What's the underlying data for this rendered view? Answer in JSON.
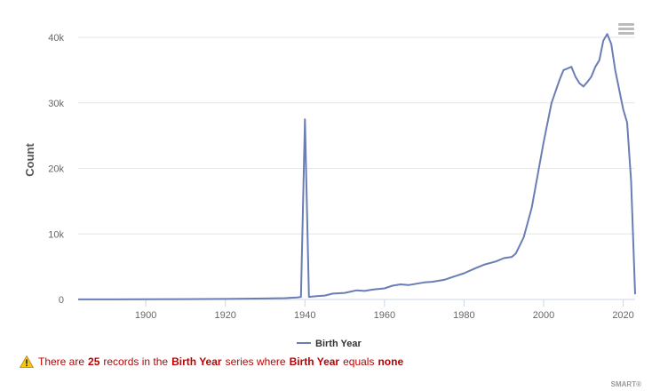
{
  "chart_data": {
    "type": "line",
    "title": "",
    "xlabel": "",
    "ylabel": "Count",
    "xlim": [
      1883,
      2023
    ],
    "ylim": [
      0,
      40000
    ],
    "x_ticks": [
      1900,
      1920,
      1940,
      1960,
      1980,
      2000,
      2020
    ],
    "y_ticks": [
      0,
      10000,
      20000,
      30000,
      40000
    ],
    "y_tick_labels": [
      "0",
      "10k",
      "20k",
      "30k",
      "40k"
    ],
    "grid": true,
    "legend_position": "bottom-center",
    "series": [
      {
        "name": "Birth Year",
        "color": "#6a7db4",
        "points": [
          [
            1883,
            10
          ],
          [
            1890,
            20
          ],
          [
            1900,
            40
          ],
          [
            1910,
            60
          ],
          [
            1920,
            80
          ],
          [
            1930,
            150
          ],
          [
            1935,
            200
          ],
          [
            1938,
            300
          ],
          [
            1939,
            400
          ],
          [
            1940,
            27500
          ],
          [
            1941,
            400
          ],
          [
            1943,
            500
          ],
          [
            1945,
            600
          ],
          [
            1947,
            900
          ],
          [
            1950,
            1000
          ],
          [
            1953,
            1400
          ],
          [
            1955,
            1300
          ],
          [
            1957,
            1500
          ],
          [
            1960,
            1700
          ],
          [
            1962,
            2100
          ],
          [
            1964,
            2300
          ],
          [
            1966,
            2200
          ],
          [
            1968,
            2400
          ],
          [
            1970,
            2600
          ],
          [
            1972,
            2700
          ],
          [
            1975,
            3000
          ],
          [
            1978,
            3600
          ],
          [
            1980,
            4000
          ],
          [
            1983,
            4800
          ],
          [
            1985,
            5300
          ],
          [
            1988,
            5800
          ],
          [
            1990,
            6300
          ],
          [
            1992,
            6500
          ],
          [
            1993,
            7000
          ],
          [
            1995,
            9500
          ],
          [
            1997,
            14000
          ],
          [
            2000,
            24000
          ],
          [
            2002,
            30000
          ],
          [
            2004,
            33500
          ],
          [
            2005,
            35000
          ],
          [
            2007,
            35500
          ],
          [
            2008,
            34000
          ],
          [
            2009,
            33000
          ],
          [
            2010,
            32500
          ],
          [
            2011,
            33200
          ],
          [
            2012,
            34000
          ],
          [
            2013,
            35500
          ],
          [
            2014,
            36500
          ],
          [
            2015,
            39500
          ],
          [
            2016,
            40500
          ],
          [
            2017,
            39000
          ],
          [
            2018,
            35000
          ],
          [
            2019,
            32000
          ],
          [
            2020,
            29000
          ],
          [
            2021,
            27000
          ],
          [
            2022,
            18000
          ],
          [
            2023,
            800
          ]
        ]
      }
    ]
  },
  "legend": {
    "label": "Birth Year"
  },
  "warning": {
    "part1": "There are",
    "count": "25",
    "part2": "records in the",
    "series": "Birth Year",
    "part3": "series where",
    "field": "Birth Year",
    "part4": "equals",
    "value": "none",
    "icon": "warning-icon"
  },
  "credits": "SMART®",
  "menu_icon": "hamburger-menu-icon"
}
